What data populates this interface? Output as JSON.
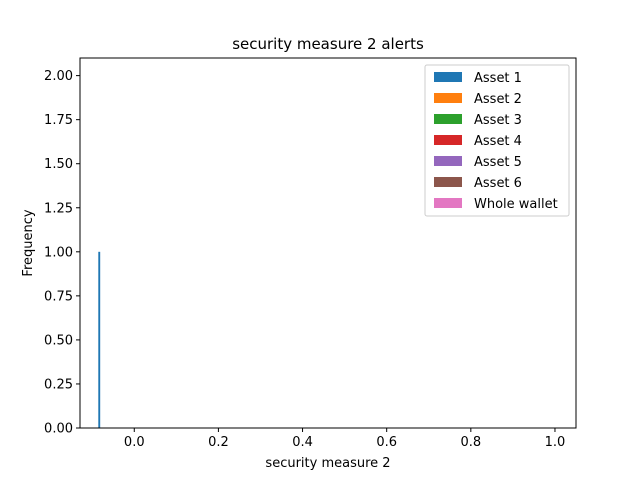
{
  "chart_data": {
    "type": "bar",
    "title": "security measure 2 alerts",
    "xlabel": "security measure 2",
    "ylabel": "Frequency",
    "xlim": [
      -0.129,
      1.05
    ],
    "ylim": [
      0,
      2.1
    ],
    "x_ticks": [
      "0.0",
      "0.2",
      "0.4",
      "0.6",
      "0.8",
      "1.0"
    ],
    "y_ticks": [
      "0.00",
      "0.25",
      "0.50",
      "0.75",
      "1.00",
      "1.25",
      "1.50",
      "1.75",
      "2.00"
    ],
    "grid": false,
    "legend_position": "top-right",
    "series": [
      {
        "name": "Asset 1",
        "color": "#1f77b4",
        "bars": [
          {
            "x0": -0.0855,
            "x1": -0.081,
            "value": 1
          }
        ]
      },
      {
        "name": "Asset 2",
        "color": "#ff7f0e",
        "bars": []
      },
      {
        "name": "Asset 3",
        "color": "#2ca02c",
        "bars": []
      },
      {
        "name": "Asset 4",
        "color": "#d62728",
        "bars": []
      },
      {
        "name": "Asset 5",
        "color": "#9467bd",
        "bars": []
      },
      {
        "name": "Asset 6",
        "color": "#8c564b",
        "bars": []
      },
      {
        "name": "Whole wallet",
        "color": "#e377c2",
        "bars": []
      }
    ]
  }
}
